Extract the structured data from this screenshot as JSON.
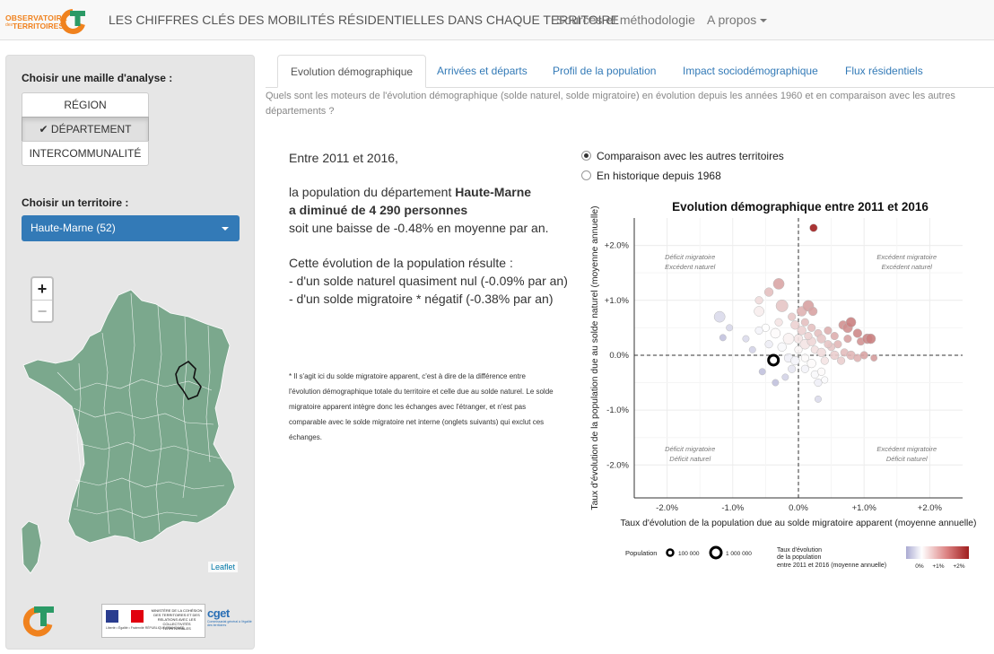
{
  "navbar": {
    "logo_line1": "OBSERVATOIRE",
    "logo_small": "des",
    "logo_line2": "TERRITOIRES",
    "title": "LES CHIFFRES CLÉS DES MOBILITÉS RÉSIDENTIELLES DANS CHAQUE TERRITOIRE",
    "sources": "Sources et méthodologie",
    "about": "A propos"
  },
  "sidebar": {
    "maille_label": "Choisir une maille d'analyse :",
    "maille_options": [
      "RÉGION",
      "✔ DÉPARTEMENT",
      "INTERCOMMUNALITÉ"
    ],
    "territoire_label": "Choisir un territoire :",
    "territoire_value": "Haute-Marne (52)",
    "zoom_in": "+",
    "zoom_out": "−",
    "attribution": "Leaflet",
    "gov_text": "MINISTÈRE DE LA COHÉSION DES TERRITOIRES ET DES RELATIONS AVEC LES COLLECTIVITÉS TERRITORIALES",
    "gov_motto": "Liberté • Égalité • Fraternité   RÉPUBLIQUE FRANÇAISE",
    "cget": "cget",
    "cget_sub": "Commissariat général à l'égalité des territoires"
  },
  "tabs": [
    "Evolution démographique",
    "Arrivées et départs",
    "Profil de la population",
    "Impact sociodémographique",
    "Flux résidentiels"
  ],
  "question": "Quels sont les moteurs de l'évolution démographique (solde naturel, solde migratoire) en évolution depuis les années 1960 et en comparaison avec les autres départements ?",
  "summary": {
    "period": "Entre 2011 et 2016,",
    "line1_pre": "la population du département ",
    "line1_bold": "Haute-Marne",
    "line2_bold": "a diminué de 4 290 personnes",
    "line3": "soit une baisse de -0.48% en moyenne par an.",
    "line4": "Cette évolution de la population résulte :",
    "line5": "- d'un solde naturel quasiment nul (-0.09% par an)",
    "line6": "- d'un solde migratoire * négatif (-0.38% par an)"
  },
  "footnote": "* Il s'agit ici du solde migratoire apparent, c'est à dire de la différence entre l'évolution démographique totale du territoire et celle due au solde naturel. Le solde migratoire apparent intègre donc les échanges avec l'étranger, et n'est pas comparable avec le solde migratoire net interne (onglets suivants) qui exclut ces échanges.",
  "radios": [
    "Comparaison avec les autres territoires",
    "En historique depuis 1968"
  ],
  "chart_data": {
    "type": "scatter",
    "title": "Evolution démographique entre 2011 et 2016",
    "xlabel": "Taux d'évolution de la population due au solde migratoire apparent (moyenne annuelle)",
    "ylabel": "Taux d'évolution de la population due au solde naturel (moyenne annuelle)",
    "xlim": [
      -2.5,
      2.5
    ],
    "ylim": [
      -2.6,
      2.5
    ],
    "xticks": [
      "-2.0%",
      "-1.0%",
      "0.0%",
      "+1.0%",
      "+2.0%"
    ],
    "yticks": [
      "+2.0%",
      "+1.0%",
      "0.0%",
      "-1.0%",
      "-2.0%"
    ],
    "quadrants": [
      {
        "l1": "Déficit migratoire",
        "l2": "Excédent naturel"
      },
      {
        "l1": "Excédent migratoire",
        "l2": "Excédent naturel"
      },
      {
        "l1": "Déficit migratoire",
        "l2": "Déficit naturel"
      },
      {
        "l1": "Excédent migratoire",
        "l2": "Déficit naturel"
      }
    ],
    "highlight": {
      "name": "Haute-Marne",
      "x": -0.38,
      "y": -0.09
    },
    "points": [
      [
        0.23,
        2.32,
        0.3
      ],
      [
        -0.3,
        1.3,
        0.6
      ],
      [
        -0.45,
        1.15,
        0.4
      ],
      [
        -0.6,
        1.0,
        0.3
      ],
      [
        -0.6,
        0.8,
        0.5
      ],
      [
        -0.25,
        0.9,
        0.7
      ],
      [
        0.05,
        0.8,
        0.5
      ],
      [
        0.15,
        0.9,
        0.6
      ],
      [
        0.22,
        0.8,
        0.4
      ],
      [
        -1.2,
        0.7,
        0.6
      ],
      [
        -1.05,
        0.5,
        0.2
      ],
      [
        -1.15,
        0.32,
        0.2
      ],
      [
        -0.7,
        0.1,
        0.2
      ],
      [
        -0.5,
        0.5,
        0.3
      ],
      [
        -0.35,
        0.4,
        0.5
      ],
      [
        -0.1,
        0.7,
        0.3
      ],
      [
        -0.05,
        0.55,
        0.4
      ],
      [
        0.05,
        0.45,
        0.4
      ],
      [
        0.1,
        0.6,
        0.3
      ],
      [
        0.2,
        0.5,
        0.3
      ],
      [
        0.3,
        0.4,
        0.3
      ],
      [
        0.35,
        0.3,
        0.4
      ],
      [
        0.45,
        0.45,
        0.3
      ],
      [
        0.55,
        0.35,
        0.3
      ],
      [
        0.6,
        0.2,
        0.3
      ],
      [
        0.68,
        0.55,
        0.4
      ],
      [
        0.75,
        0.5,
        0.5
      ],
      [
        0.8,
        0.6,
        0.5
      ],
      [
        0.9,
        0.4,
        0.4
      ],
      [
        0.75,
        0.3,
        0.3
      ],
      [
        0.95,
        0.25,
        0.3
      ],
      [
        1.05,
        0.3,
        0.5
      ],
      [
        1.1,
        0.3,
        0.5
      ],
      [
        0.5,
        0.15,
        0.3
      ],
      [
        0.55,
        0.0,
        0.4
      ],
      [
        0.65,
        -0.1,
        0.3
      ],
      [
        0.7,
        0.05,
        0.3
      ],
      [
        0.8,
        0.0,
        0.4
      ],
      [
        0.9,
        -0.05,
        0.3
      ],
      [
        1.0,
        0.0,
        0.3
      ],
      [
        1.15,
        -0.05,
        0.2
      ],
      [
        -0.15,
        0.3,
        0.6
      ],
      [
        0.0,
        0.3,
        0.4
      ],
      [
        0.1,
        0.2,
        0.5
      ],
      [
        0.2,
        0.25,
        0.4
      ],
      [
        0.25,
        0.1,
        0.3
      ],
      [
        0.35,
        0.05,
        0.4
      ],
      [
        0.4,
        -0.1,
        0.3
      ],
      [
        -0.25,
        0.15,
        0.4
      ],
      [
        -0.45,
        0.2,
        0.3
      ],
      [
        -0.15,
        -0.05,
        0.4
      ],
      [
        -0.05,
        -0.1,
        0.4
      ],
      [
        0.1,
        -0.05,
        0.3
      ],
      [
        0.2,
        -0.15,
        0.4
      ],
      [
        0.25,
        -0.35,
        0.3
      ],
      [
        0.35,
        -0.3,
        0.3
      ],
      [
        0.3,
        -0.5,
        0.3
      ],
      [
        0.4,
        -0.45,
        0.2
      ],
      [
        0.1,
        -0.25,
        0.3
      ],
      [
        -0.1,
        -0.25,
        0.3
      ],
      [
        -0.2,
        -0.4,
        0.2
      ],
      [
        -0.55,
        -0.3,
        0.2
      ],
      [
        -0.35,
        -0.5,
        0.2
      ],
      [
        0.3,
        -0.8,
        0.2
      ],
      [
        -0.6,
        0.45,
        0.3
      ],
      [
        -0.8,
        0.3,
        0.2
      ],
      [
        0.15,
        0.35,
        0.3
      ],
      [
        -0.3,
        0.6,
        0.3
      ],
      [
        0.45,
        0.2,
        0.3
      ],
      [
        0.0,
        0.1,
        0.3
      ]
    ],
    "legend": {
      "population_label": "Population",
      "sizes": [
        "100 000",
        "1 000 000"
      ],
      "color_label_l1": "Taux d'évolution",
      "color_label_l2": "de la population",
      "color_label_l3": "entre 2011 et 2016 (moyenne annuelle)",
      "color_ticks": [
        "0%",
        "+1%",
        "+2%"
      ]
    }
  }
}
